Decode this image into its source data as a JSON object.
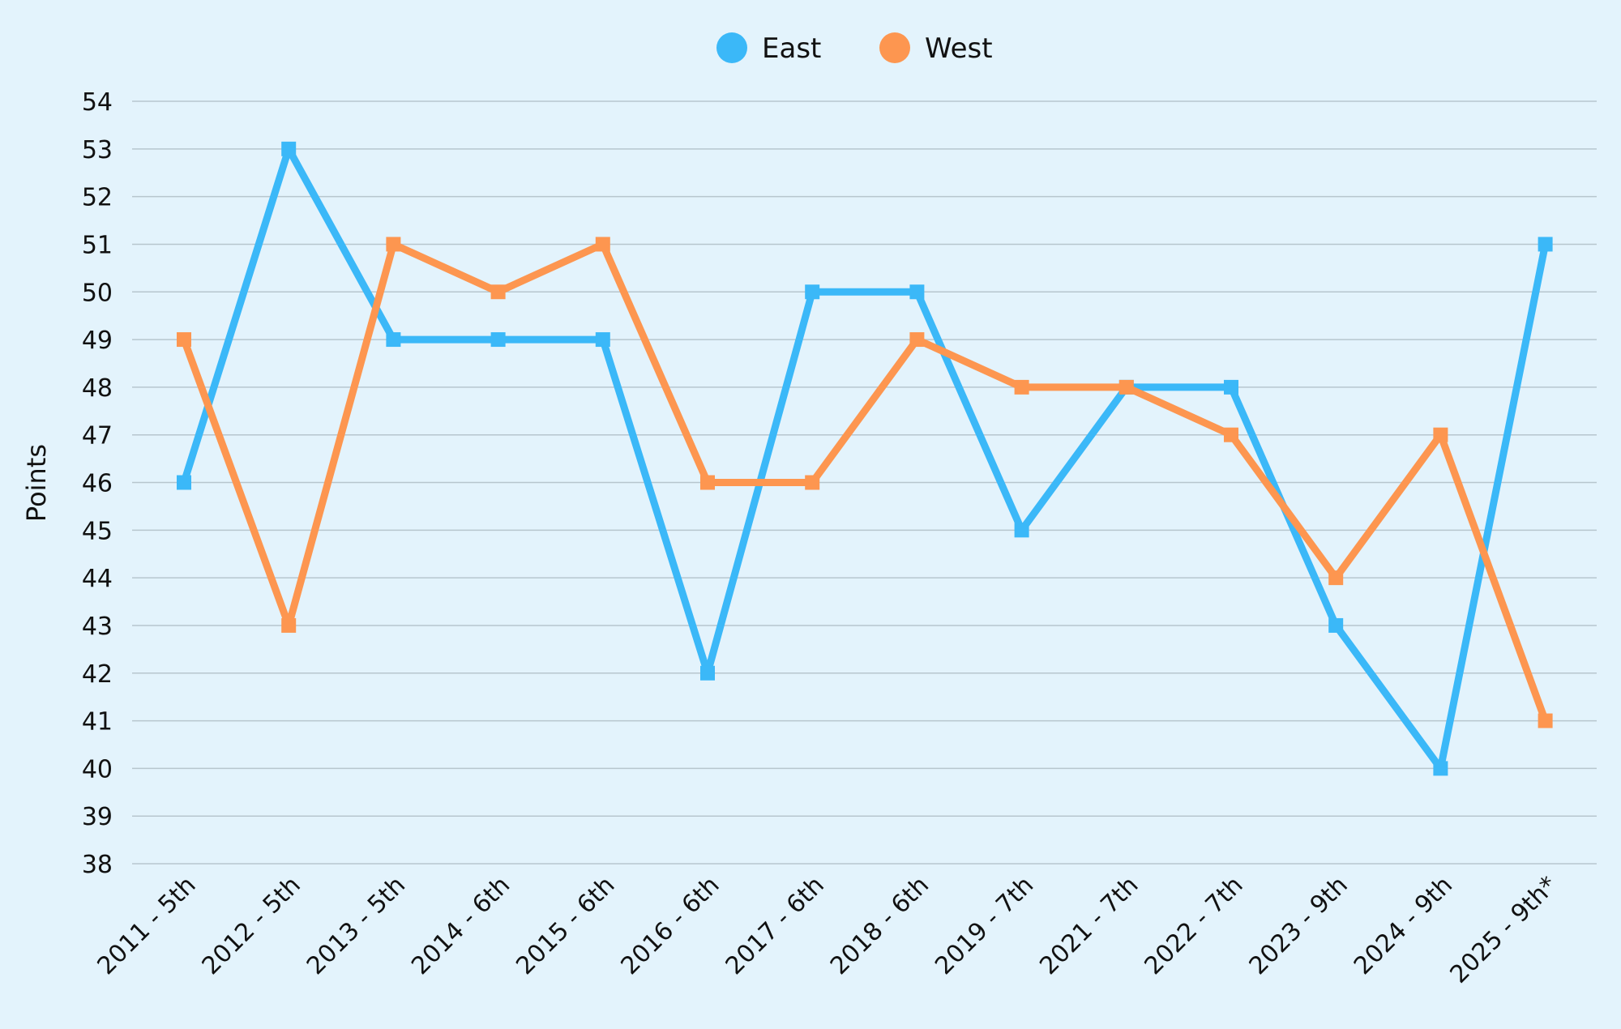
{
  "chart_data": {
    "type": "line",
    "title": "",
    "xlabel": "",
    "ylabel": "Points",
    "ylim": [
      38,
      54
    ],
    "y_ticks": [
      38,
      39,
      40,
      41,
      42,
      43,
      44,
      45,
      46,
      47,
      48,
      49,
      50,
      51,
      52,
      53,
      54
    ],
    "categories": [
      "2011 - 5th",
      "2012 - 5th",
      "2013 - 5th",
      "2014 - 6th",
      "2015 - 6th",
      "2016 - 6th",
      "2017 - 6th",
      "2018 - 6th",
      "2019 - 7th",
      "2021 - 7th",
      "2022 - 7th",
      "2023 - 9th",
      "2024 - 9th",
      "2025 - 9th*"
    ],
    "series": [
      {
        "name": "East",
        "color": "#3bb8f8",
        "values": [
          46,
          53,
          49,
          49,
          49,
          42,
          50,
          50,
          45,
          48,
          48,
          43,
          40,
          51
        ]
      },
      {
        "name": "West",
        "color": "#fd9650",
        "values": [
          49,
          43,
          51,
          50,
          51,
          46,
          46,
          49,
          48,
          48,
          47,
          44,
          47,
          41
        ]
      }
    ],
    "grid": true,
    "legend_position": "top-center",
    "marker": "square"
  }
}
